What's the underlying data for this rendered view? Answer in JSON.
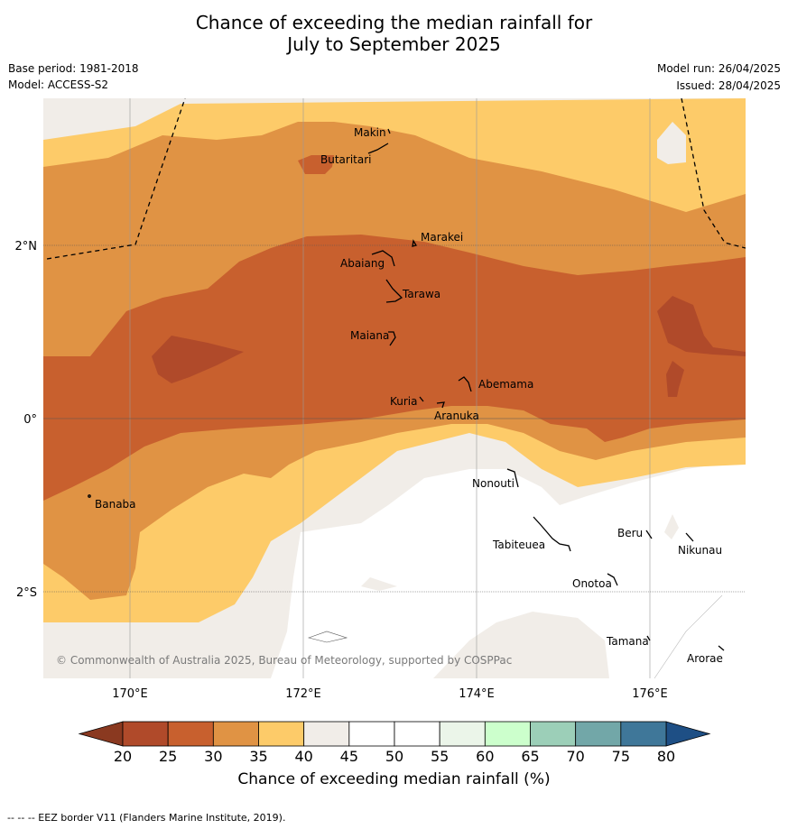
{
  "header": {
    "title_line1": "Chance of exceeding the median rainfall for",
    "title_line2": "July to September 2025",
    "base_period": "Base period: 1981-2018",
    "model": "Model: ACCESS-S2",
    "model_run": "Model run: 26/04/2025",
    "issued": "Issued: 28/04/2025"
  },
  "map": {
    "lon_ticks": [
      "170°E",
      "172°E",
      "174°E",
      "176°E"
    ],
    "lat_ticks": [
      "2°N",
      "0°",
      "2°S"
    ],
    "places": [
      "Makin",
      "Butaritari",
      "Marakei",
      "Abaiang",
      "Tarawa",
      "Maiana",
      "Abemama",
      "Kuria",
      "Aranuka",
      "Nonouti",
      "Banaba",
      "Tabiteuea",
      "Beru",
      "Nikunau",
      "Onotoa",
      "Tamana",
      "Arorae"
    ],
    "copyright": "© Commonwealth of Australia 2025, Bureau of Meteorology, supported by COSPPac"
  },
  "colorbar": {
    "ticks": [
      "20",
      "25",
      "30",
      "35",
      "40",
      "45",
      "50",
      "55",
      "60",
      "65",
      "70",
      "75",
      "80"
    ],
    "colors": [
      "#b04a2a",
      "#c8602e",
      "#e09344",
      "#fdcb69",
      "#f1ede8",
      "#ffffff",
      "#ffffff",
      "#ebf5e9",
      "#ccffcc",
      "#9ccfb8",
      "#72a7a8",
      "#3f7799"
    ],
    "under_color": "#8a3920",
    "over_color": "#1e4f85",
    "label": "Chance of exceeding median rainfall (%)"
  },
  "footnote": "--  --  -- EEZ border V11 (Flanders Marine Institute, 2019)."
}
